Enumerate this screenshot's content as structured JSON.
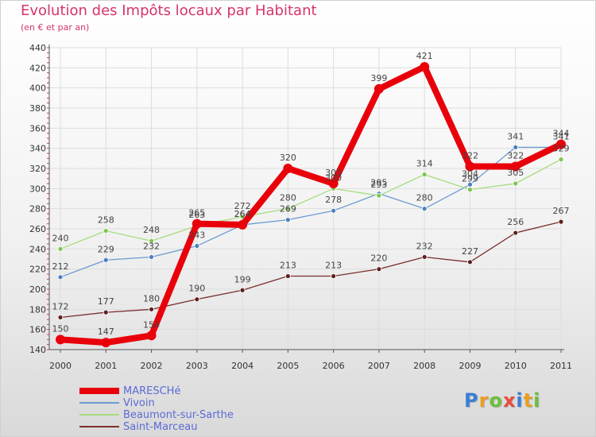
{
  "title": "Evolution des Impôts locaux par Habitant",
  "subtitle": "(en € et par an)",
  "brand": {
    "text": "Proxiti",
    "colors": [
      "#3a7fd5",
      "#e8a020",
      "#6cbf3a",
      "#e84c3d",
      "#3a7fd5",
      "#e8a020",
      "#6cbf3a"
    ]
  },
  "chart_data": {
    "type": "line",
    "title": "Evolution des Impôts locaux par Habitant",
    "subtitle": "(en € et par an)",
    "xlabel": "",
    "ylabel": "",
    "categories": [
      "2000",
      "2001",
      "2002",
      "2003",
      "2004",
      "2005",
      "2006",
      "2007",
      "2008",
      "2009",
      "2010",
      "2011"
    ],
    "ylim": [
      140,
      440
    ],
    "yticks": [
      140,
      160,
      180,
      200,
      220,
      240,
      260,
      280,
      300,
      320,
      340,
      360,
      380,
      400,
      420,
      440
    ],
    "grid": true,
    "legend_position": "bottom-left",
    "series": [
      {
        "name": "Vivoin",
        "color": "#6b9bd2",
        "dot": "#4a7fc0",
        "line_style": "thin",
        "values": [
          212,
          229,
          232,
          243,
          264,
          269,
          278,
          295,
          280,
          304,
          341,
          341
        ],
        "labels": [
          "212",
          "229",
          "232",
          "243",
          "264",
          "269",
          "278",
          "295",
          "280",
          "304",
          "341",
          "341"
        ]
      },
      {
        "name": "Beaumont-sur-Sarthe",
        "color": "#a6dc7f",
        "dot": "#7cc44e",
        "line_style": "thin",
        "values": [
          240,
          258,
          248,
          263,
          272,
          280,
          300,
          293,
          314,
          299,
          305,
          329
        ],
        "labels": [
          "240",
          "258",
          "248",
          "263",
          "272",
          "280",
          "300",
          "293",
          "314",
          "299",
          "305",
          "329"
        ]
      },
      {
        "name": "Saint-Marceau",
        "color": "#7a2e2e",
        "dot": "#5e1f1f",
        "line_style": "thin",
        "values": [
          172,
          177,
          180,
          190,
          199,
          213,
          213,
          220,
          232,
          227,
          256,
          267
        ],
        "labels": [
          "172",
          "177",
          "180",
          "190",
          "199",
          "213",
          "213",
          "220",
          "232",
          "227",
          "256",
          "267"
        ]
      },
      {
        "name": "MARESCHé",
        "color": "#e8000b",
        "dot": "#e8000b",
        "line_style": "thick",
        "values": [
          150,
          147,
          154,
          265,
          264,
          320,
          305,
          399,
          421,
          322,
          322,
          344
        ],
        "labels": [
          "150",
          "147",
          "154",
          "265",
          "264",
          "320",
          "305",
          "399",
          "421",
          "322",
          "322",
          "344"
        ]
      }
    ],
    "legend": [
      "MARESCHé",
      "Vivoin",
      "Beaumont-sur-Sarthe",
      "Saint-Marceau"
    ]
  }
}
